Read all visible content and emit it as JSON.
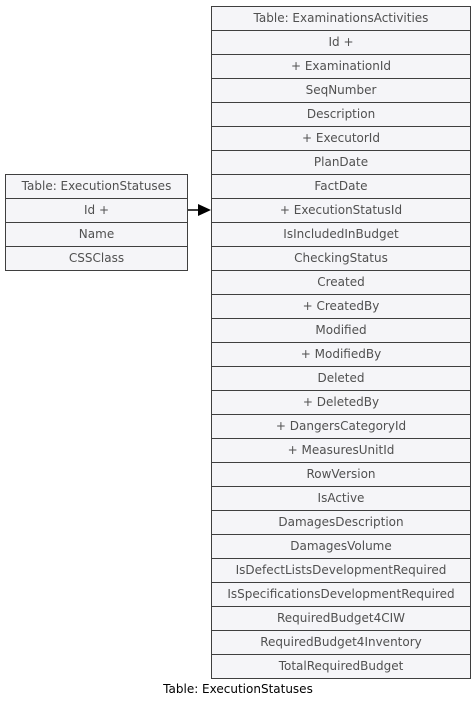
{
  "left_table": {
    "header": "Table: ExecutionStatuses",
    "rows": [
      "Id +",
      "Name",
      "CSSClass"
    ]
  },
  "right_table": {
    "header": "Table: ExaminationsActivities",
    "rows": [
      "Id +",
      "+ ExaminationId",
      "SeqNumber",
      "Description",
      "+ ExecutorId",
      "PlanDate",
      "FactDate",
      "+ ExecutionStatusId",
      "IsIncludedInBudget",
      "CheckingStatus",
      "Created",
      "+ CreatedBy",
      "Modified",
      "+ ModifiedBy",
      "Deleted",
      "+ DeletedBy",
      "+ DangersCategoryId",
      "+ MeasuresUnitId",
      "RowVersion",
      "IsActive",
      "DamagesDescription",
      "DamagesVolume",
      "IsDefectListsDevelopmentRequired",
      "IsSpecificationsDevelopmentRequired",
      "RequiredBudget4CIW",
      "RequiredBudget4Inventory",
      "TotalRequiredBudget"
    ]
  },
  "caption": "Table: ExecutionStatuses",
  "colors": {
    "box_fill": "#f5f5f8",
    "border": "#3f3f3f",
    "text": "#505050",
    "arrow": "#000000"
  }
}
